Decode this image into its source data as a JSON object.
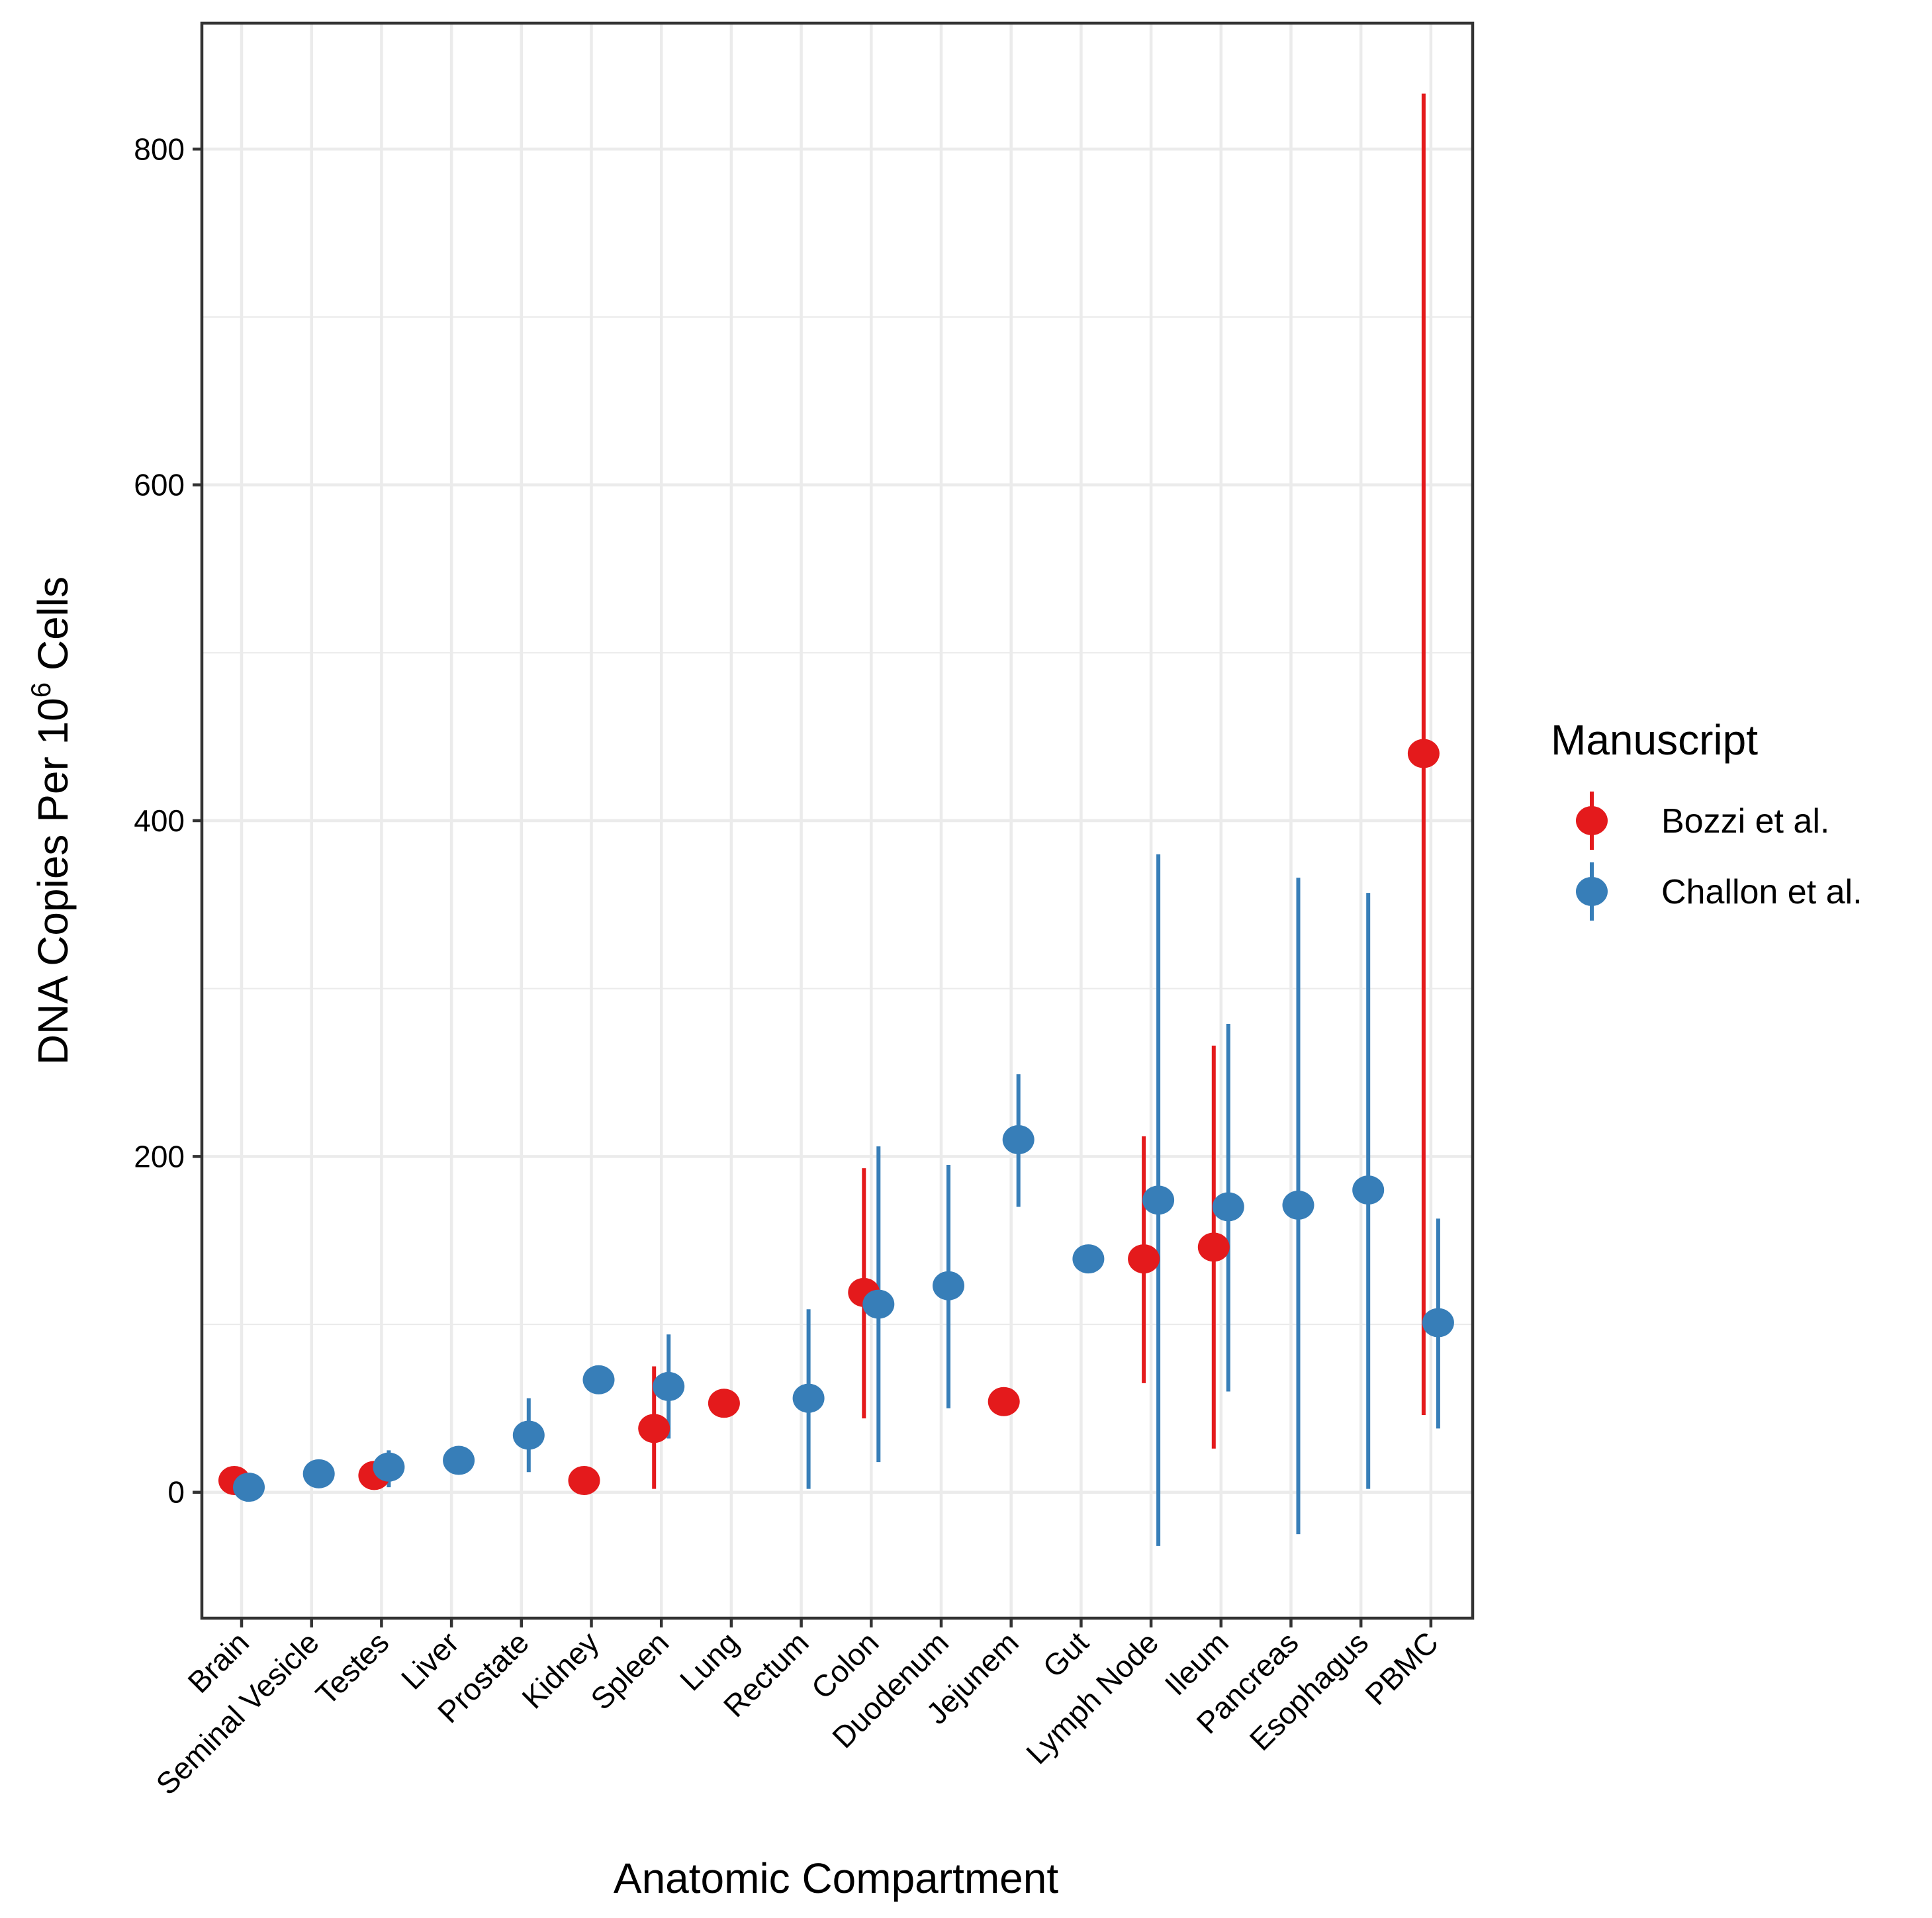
{
  "chart_data": {
    "type": "scatter",
    "xlabel": "Anatomic Compartment",
    "ylabel": {
      "prefix": "DNA Copies Per 10",
      "superscript": "6",
      "suffix": " Cells"
    },
    "categories": [
      "Brain",
      "Seminal Vesicle",
      "Testes",
      "Liver",
      "Prostate",
      "Kidney",
      "Spleen",
      "Lung",
      "Rectum",
      "Colon",
      "Duodenum",
      "Jejunem",
      "Gut",
      "Lymph Node",
      "Ileum",
      "Pancreas",
      "Esophagus",
      "PBMC"
    ],
    "yticks": [
      0,
      200,
      400,
      600,
      800
    ],
    "ylim": [
      -75,
      875
    ],
    "grid": true,
    "legend": {
      "title": "Manuscript",
      "position": "right"
    },
    "series": [
      {
        "name": "Bozzi et al.",
        "color": "#E41A1C",
        "points": [
          {
            "category": "Brain",
            "y": 7,
            "low": null,
            "high": null
          },
          {
            "category": "Testes",
            "y": 10,
            "low": null,
            "high": null
          },
          {
            "category": "Kidney",
            "y": 7,
            "low": null,
            "high": null
          },
          {
            "category": "Spleen",
            "y": 38,
            "low": 2,
            "high": 75
          },
          {
            "category": "Lung",
            "y": 53,
            "low": null,
            "high": null
          },
          {
            "category": "Colon",
            "y": 119,
            "low": 44,
            "high": 193
          },
          {
            "category": "Jejunem",
            "y": 54,
            "low": null,
            "high": null
          },
          {
            "category": "Lymph Node",
            "y": 139,
            "low": 65,
            "high": 212
          },
          {
            "category": "Ileum",
            "y": 146,
            "low": 26,
            "high": 266
          },
          {
            "category": "PBMC",
            "y": 440,
            "low": 46,
            "high": 833
          }
        ]
      },
      {
        "name": "Challon et al.",
        "color": "#377EB8",
        "points": [
          {
            "category": "Brain",
            "y": 3,
            "low": null,
            "high": null
          },
          {
            "category": "Seminal Vesicle",
            "y": 11,
            "low": null,
            "high": null
          },
          {
            "category": "Testes",
            "y": 15,
            "low": 3,
            "high": 25
          },
          {
            "category": "Liver",
            "y": 19,
            "low": null,
            "high": null
          },
          {
            "category": "Prostate",
            "y": 34,
            "low": 12,
            "high": 56
          },
          {
            "category": "Kidney",
            "y": 67,
            "low": null,
            "high": null
          },
          {
            "category": "Spleen",
            "y": 63,
            "low": 32,
            "high": 94
          },
          {
            "category": "Rectum",
            "y": 56,
            "low": 2,
            "high": 109
          },
          {
            "category": "Colon",
            "y": 112,
            "low": 18,
            "high": 206
          },
          {
            "category": "Duodenum",
            "y": 123,
            "low": 50,
            "high": 195
          },
          {
            "category": "Jejunem",
            "y": 210,
            "low": 170,
            "high": 249
          },
          {
            "category": "Gut",
            "y": 139,
            "low": null,
            "high": null
          },
          {
            "category": "Lymph Node",
            "y": 174,
            "low": -32,
            "high": 380
          },
          {
            "category": "Ileum",
            "y": 170,
            "low": 60,
            "high": 279
          },
          {
            "category": "Pancreas",
            "y": 171,
            "low": -25,
            "high": 366
          },
          {
            "category": "Esophagus",
            "y": 180,
            "low": 2,
            "high": 357
          },
          {
            "category": "PBMC",
            "y": 101,
            "low": 38,
            "high": 163
          }
        ]
      }
    ]
  }
}
